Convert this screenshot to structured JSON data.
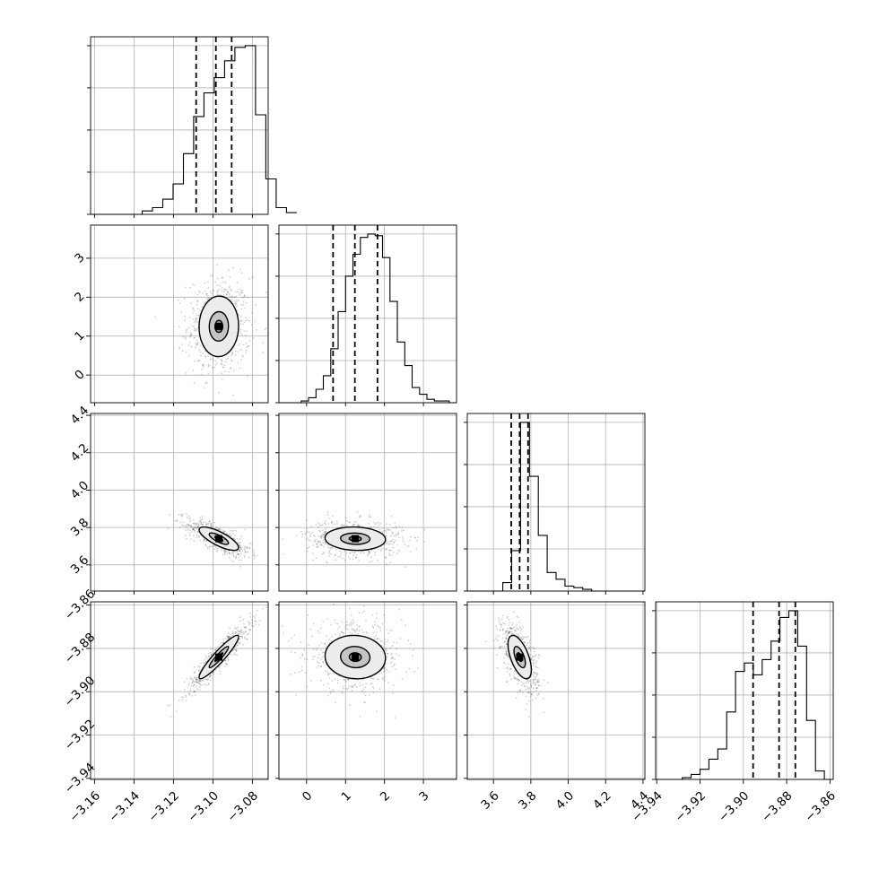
{
  "chart_data": {
    "type": "corner",
    "parameters": [
      {
        "range": [
          -3.162,
          -3.072
        ],
        "ticks": [
          -3.16,
          -3.14,
          -3.12,
          -3.1,
          -3.08
        ],
        "tick_labels": [
          "−3.16",
          "−3.14",
          "−3.12",
          "−3.10",
          "−3.08"
        ],
        "center": -3.097,
        "sd": 0.008,
        "quantiles": [
          -3.1085,
          -3.0985,
          -3.0905
        ]
      },
      {
        "range": [
          -0.71,
          3.85
        ],
        "ticks": [
          0,
          1,
          2,
          3
        ],
        "tick_labels": [
          "0",
          "1",
          "2",
          "3"
        ],
        "center": 1.25,
        "sd": 0.62,
        "quantiles": [
          0.68,
          1.24,
          1.82
        ]
      },
      {
        "range": [
          3.46,
          4.41
        ],
        "ticks": [
          3.6,
          3.8,
          4.0,
          4.2,
          4.4
        ],
        "tick_labels": [
          "3.6",
          "3.8",
          "4.0",
          "4.2",
          "4.4"
        ],
        "center": 3.74,
        "sd": 0.05,
        "quantiles": [
          3.695,
          3.74,
          3.785
        ]
      },
      {
        "range": [
          -3.9405,
          -3.8585
        ],
        "ticks": [
          -3.94,
          -3.92,
          -3.9,
          -3.88,
          -3.86
        ],
        "tick_labels": [
          "−3.94",
          "−3.92",
          "−3.90",
          "−3.88",
          "−3.86"
        ],
        "center": -3.884,
        "sd": 0.008,
        "quantiles": [
          -3.8955,
          -3.8835,
          -3.876
        ]
      }
    ],
    "histograms": [
      {
        "bins": [
          -3.162,
          -3.0575
        ],
        "counts": [
          0,
          0,
          0,
          0,
          0,
          0.02,
          0.04,
          0.09,
          0.18,
          0.36,
          0.58,
          0.72,
          0.81,
          0.91,
          0.99,
          1.0,
          0.59,
          0.21,
          0.04,
          0.01
        ]
      },
      {
        "bins": [
          -0.71,
          3.85
        ],
        "counts": [
          0,
          0,
          0,
          0.01,
          0.03,
          0.08,
          0.16,
          0.32,
          0.54,
          0.75,
          0.88,
          0.98,
          1.0,
          0.99,
          0.86,
          0.6,
          0.36,
          0.22,
          0.09,
          0.05,
          0.02,
          0.01,
          0.01,
          0
        ]
      },
      {
        "bins": [
          3.46,
          4.41
        ],
        "counts": [
          0,
          0,
          0,
          0,
          0.05,
          0.24,
          1.0,
          0.68,
          0.33,
          0.11,
          0.07,
          0.03,
          0.02,
          0.01,
          0,
          0,
          0,
          0,
          0,
          0
        ]
      },
      {
        "bins": [
          -3.9405,
          -3.8585
        ],
        "counts": [
          0,
          0,
          0,
          0.01,
          0.03,
          0.06,
          0.12,
          0.18,
          0.4,
          0.64,
          0.69,
          0.62,
          0.71,
          0.82,
          0.96,
          1.0,
          0.79,
          0.35,
          0.05,
          0
        ]
      }
    ],
    "pairs": [
      {
        "x": 0,
        "y": 1,
        "corr": 0.02
      },
      {
        "x": 0,
        "y": 2,
        "corr": -0.76
      },
      {
        "x": 1,
        "y": 2,
        "corr": -0.07
      },
      {
        "x": 0,
        "y": 3,
        "corr": 0.93
      },
      {
        "x": 1,
        "y": 3,
        "corr": -0.05
      },
      {
        "x": 2,
        "y": 3,
        "corr": -0.58
      }
    ],
    "contour_levels": [
      0.25,
      0.61,
      1.25
    ],
    "grid": true
  }
}
